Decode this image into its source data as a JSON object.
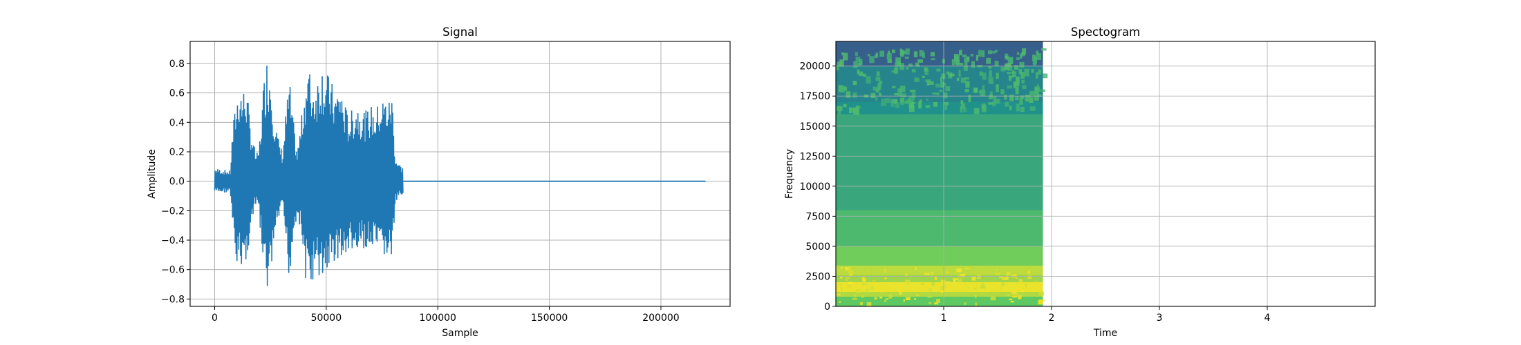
{
  "chart_data": [
    {
      "type": "line",
      "title": "Signal",
      "xlabel": "Sample",
      "ylabel": "Amplitude",
      "xlim": [
        -11000,
        231000
      ],
      "ylim": [
        -0.85,
        0.95
      ],
      "xticks": [
        0,
        50000,
        100000,
        150000,
        200000
      ],
      "xtick_labels": [
        "0",
        "50000",
        "100000",
        "150000",
        "200000"
      ],
      "yticks": [
        -0.8,
        -0.6,
        -0.4,
        -0.2,
        0.0,
        0.2,
        0.4,
        0.6,
        0.8
      ],
      "ytick_labels": [
        "−0.8",
        "−0.6",
        "−0.4",
        "−0.2",
        "0.0",
        "0.2",
        "0.4",
        "0.6",
        "0.8"
      ],
      "grid": true,
      "color": "#1f77b4",
      "series": [
        {
          "name": "",
          "x": [
            0,
            4000,
            7000,
            8000,
            9500,
            11000,
            12500,
            14000,
            16000,
            18000,
            19500,
            20500,
            22000,
            23500,
            25000,
            26500,
            28500,
            30500,
            32000,
            33500,
            35000,
            37000,
            39000,
            40500,
            42000,
            44000,
            46000,
            48000,
            50000,
            52000,
            54000,
            56000,
            58000,
            60000,
            62000,
            64000,
            66000,
            68000,
            70000,
            72000,
            74000,
            76000,
            78000,
            79500,
            81000,
            83000,
            84500,
            220000
          ],
          "ymax": [
            0.09,
            0.08,
            0.07,
            0.35,
            0.55,
            0.68,
            0.62,
            0.68,
            0.4,
            0.22,
            0.18,
            0.35,
            0.7,
            0.86,
            0.78,
            0.5,
            0.3,
            0.2,
            0.5,
            0.7,
            0.45,
            0.2,
            0.45,
            0.68,
            0.8,
            0.66,
            0.72,
            0.82,
            0.75,
            0.7,
            0.6,
            0.68,
            0.55,
            0.45,
            0.5,
            0.55,
            0.5,
            0.48,
            0.52,
            0.48,
            0.56,
            0.58,
            0.56,
            0.62,
            0.17,
            0.12,
            0.09,
            0.005
          ],
          "ymin": [
            -0.08,
            -0.08,
            -0.07,
            -0.35,
            -0.6,
            -0.62,
            -0.55,
            -0.6,
            -0.35,
            -0.2,
            -0.16,
            -0.35,
            -0.65,
            -0.77,
            -0.7,
            -0.45,
            -0.28,
            -0.2,
            -0.45,
            -0.7,
            -0.42,
            -0.22,
            -0.4,
            -0.65,
            -0.75,
            -0.7,
            -0.66,
            -0.68,
            -0.62,
            -0.6,
            -0.55,
            -0.52,
            -0.58,
            -0.48,
            -0.5,
            -0.55,
            -0.45,
            -0.48,
            -0.5,
            -0.5,
            -0.55,
            -0.52,
            -0.55,
            -0.55,
            -0.16,
            -0.11,
            -0.08,
            -0.005
          ]
        }
      ]
    },
    {
      "type": "heatmap",
      "title": "Spectogram",
      "xlabel": "Time",
      "ylabel": "Frequency",
      "xlim": [
        0.0,
        5.0
      ],
      "ylim": [
        0,
        22050
      ],
      "xticks": [
        1,
        2,
        3,
        4
      ],
      "xtick_labels": [
        "1",
        "2",
        "3",
        "4"
      ],
      "yticks": [
        0,
        2500,
        5000,
        7500,
        10000,
        12500,
        15000,
        17500,
        20000
      ],
      "ytick_labels": [
        "0",
        "2500",
        "5000",
        "7500",
        "10000",
        "12500",
        "15000",
        "17500",
        "20000"
      ],
      "grid": true,
      "colormap": "viridis",
      "data_extent_time": [
        0.0,
        1.92
      ],
      "freq_bands": [
        {
          "from": 0,
          "to": 800,
          "level": 0.75
        },
        {
          "from": 800,
          "to": 1200,
          "level": 0.88
        },
        {
          "from": 1200,
          "to": 2000,
          "level": 0.97
        },
        {
          "from": 2000,
          "to": 2600,
          "level": 0.85
        },
        {
          "from": 2600,
          "to": 3400,
          "level": 0.9
        },
        {
          "from": 3400,
          "to": 5000,
          "level": 0.78
        },
        {
          "from": 5000,
          "to": 8000,
          "level": 0.68
        },
        {
          "from": 8000,
          "to": 16000,
          "level": 0.6
        },
        {
          "from": 16000,
          "to": 17000,
          "level": 0.5
        },
        {
          "from": 17000,
          "to": 20000,
          "level": 0.45
        },
        {
          "from": 20000,
          "to": 22050,
          "level": 0.3
        }
      ]
    }
  ]
}
